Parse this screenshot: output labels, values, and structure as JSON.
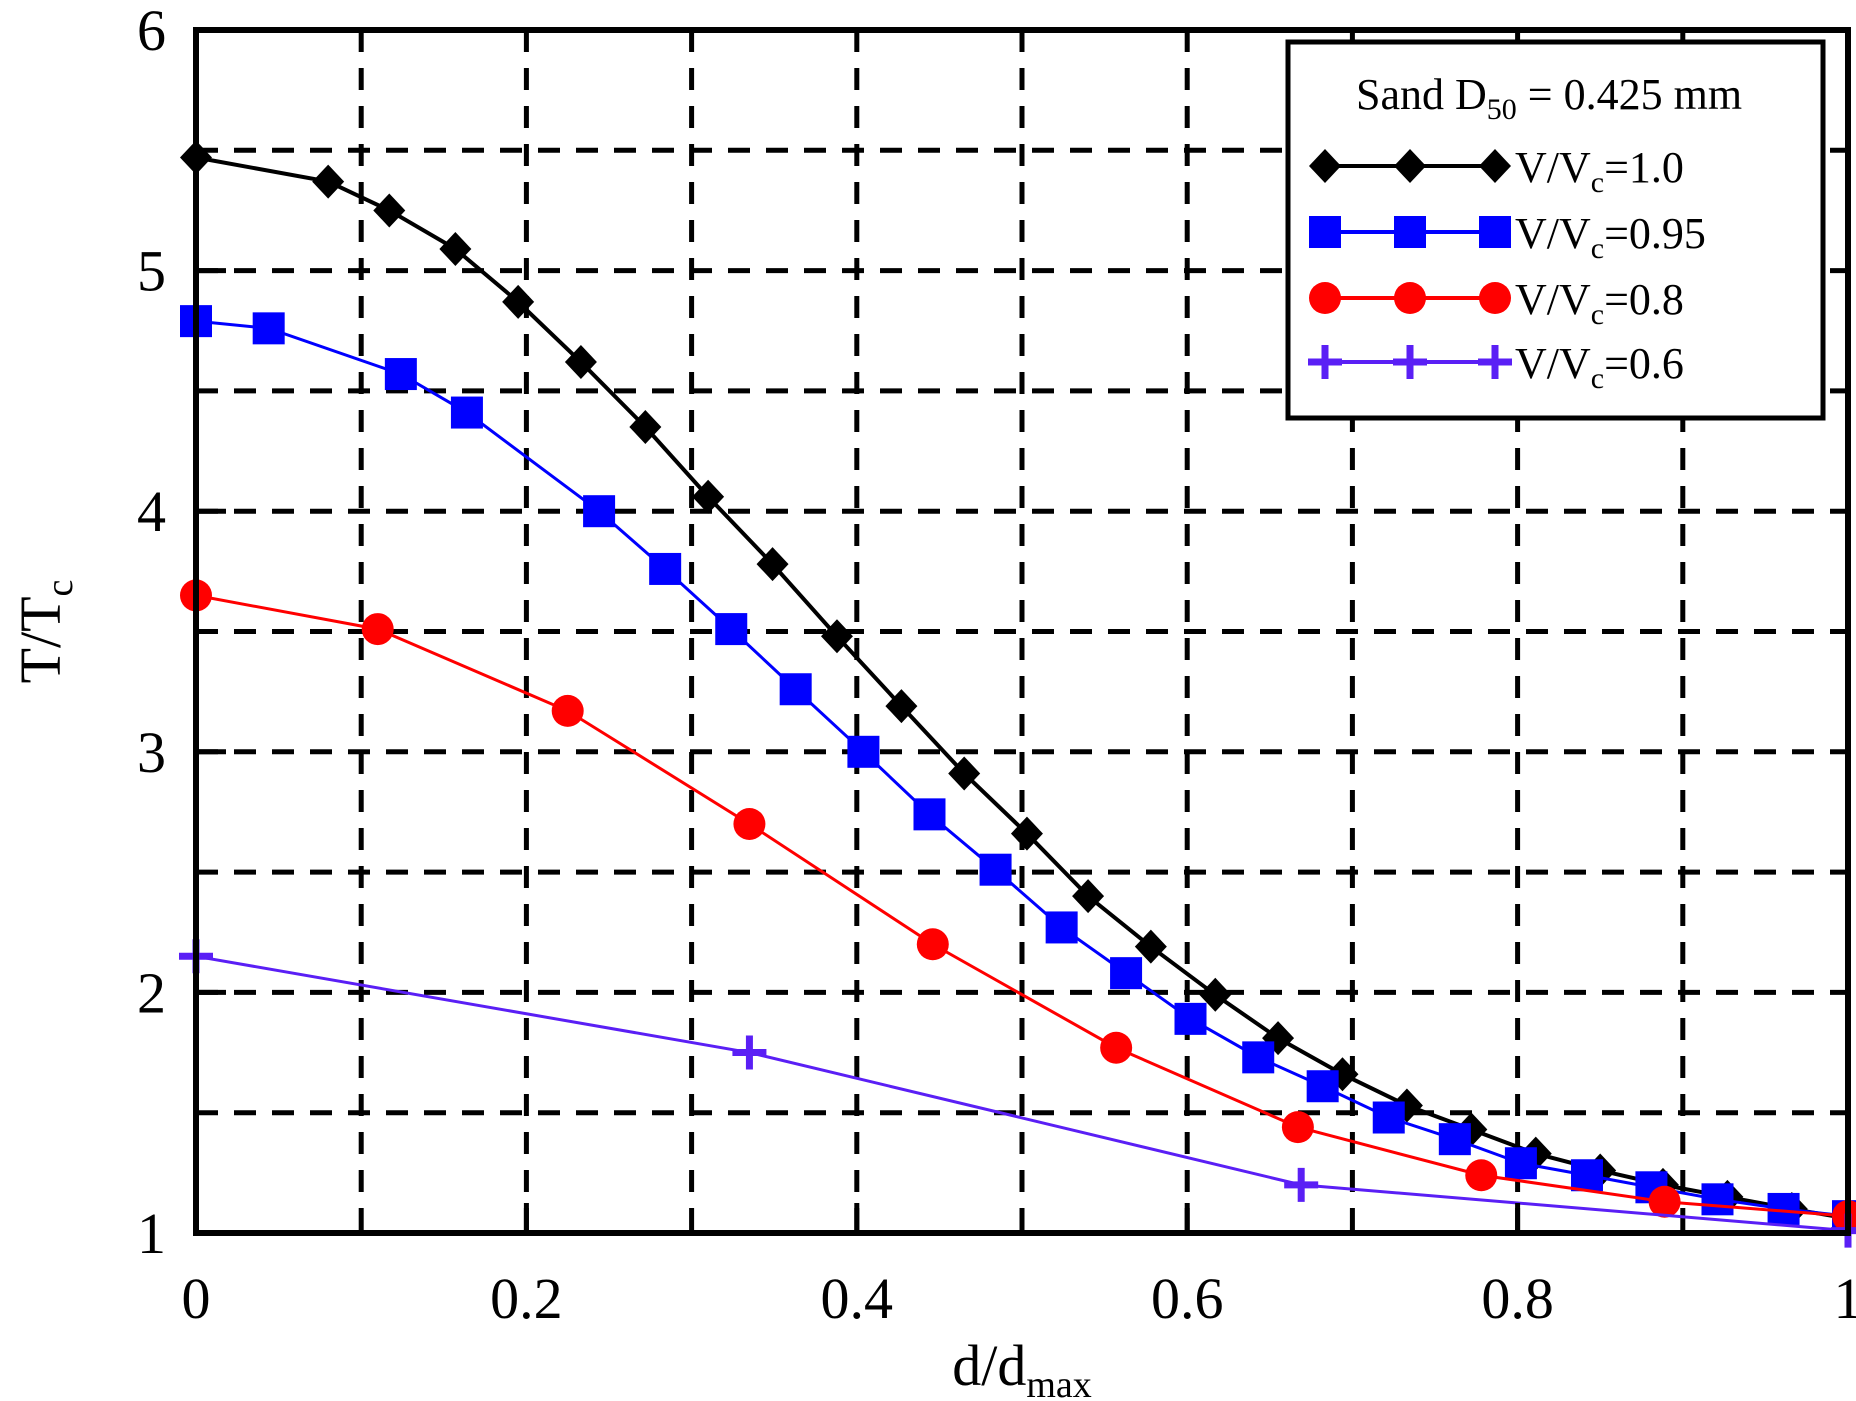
{
  "chart_data": {
    "type": "line",
    "title": "",
    "xlabel": "d/d",
    "xlabel_sub": "max",
    "ylabel": "T/T",
    "ylabel_sub": "c",
    "xlim": [
      0,
      1
    ],
    "ylim": [
      1,
      6
    ],
    "x_ticks": [
      0,
      0.2,
      0.4,
      0.6,
      0.8,
      1
    ],
    "x_tick_labels": [
      "0",
      "0.2",
      "0.4",
      "0.6",
      "0.8",
      "1"
    ],
    "y_ticks": [
      1,
      2,
      3,
      4,
      5,
      6
    ],
    "y_tick_labels": [
      "1",
      "2",
      "3",
      "4",
      "5",
      "6"
    ],
    "grid": true,
    "grid_style": "dashed",
    "x_grid": [
      0.1,
      0.2,
      0.3,
      0.4,
      0.5,
      0.6,
      0.7,
      0.8,
      0.9
    ],
    "y_grid": [
      1.5,
      2,
      2.5,
      3,
      3.5,
      4,
      4.5,
      5,
      5.5
    ],
    "legend": {
      "placement": "top-right",
      "title": "Sand D",
      "title_sub": "50",
      "title_rest": " = 0.425 mm"
    },
    "series": [
      {
        "name": "V/Vc=1.0",
        "label_main": "V/V",
        "label_sub": "c",
        "label_rest": "=1.0",
        "color": "#000000",
        "marker": "diamond",
        "x": [
          0,
          0.08,
          0.117,
          0.157,
          0.195,
          0.233,
          0.272,
          0.31,
          0.349,
          0.388,
          0.427,
          0.465,
          0.503,
          0.54,
          0.578,
          0.617,
          0.655,
          0.694,
          0.733,
          0.772,
          0.811,
          0.85,
          0.888,
          0.927,
          0.966,
          1.0
        ],
        "y": [
          5.47,
          5.37,
          5.25,
          5.09,
          4.87,
          4.62,
          4.35,
          4.06,
          3.78,
          3.48,
          3.19,
          2.91,
          2.66,
          2.4,
          2.19,
          1.99,
          1.81,
          1.66,
          1.53,
          1.43,
          1.33,
          1.26,
          1.2,
          1.15,
          1.1,
          1.06
        ]
      },
      {
        "name": "V/Vc=0.95",
        "label_main": "V/V",
        "label_sub": "c",
        "label_rest": "=0.95",
        "color": "#0000ff",
        "marker": "square",
        "x": [
          0,
          0.044,
          0.124,
          0.164,
          0.244,
          0.284,
          0.324,
          0.363,
          0.404,
          0.444,
          0.484,
          0.524,
          0.563,
          0.602,
          0.643,
          0.682,
          0.722,
          0.762,
          0.802,
          0.842,
          0.881,
          0.921,
          0.961,
          1.0
        ],
        "y": [
          4.79,
          4.76,
          4.57,
          4.41,
          4.0,
          3.76,
          3.51,
          3.26,
          3.0,
          2.74,
          2.51,
          2.27,
          2.08,
          1.89,
          1.73,
          1.61,
          1.48,
          1.39,
          1.29,
          1.24,
          1.19,
          1.14,
          1.1,
          1.07
        ]
      },
      {
        "name": "V/Vc=0.8",
        "label_main": "V/V",
        "label_sub": "c",
        "label_rest": "=0.8",
        "color": "#ff0000",
        "marker": "circle",
        "x": [
          0,
          0.11,
          0.225,
          0.335,
          0.446,
          0.557,
          0.667,
          0.778,
          0.889,
          1.0
        ],
        "y": [
          3.65,
          3.51,
          3.17,
          2.7,
          2.2,
          1.77,
          1.44,
          1.24,
          1.13,
          1.07
        ]
      },
      {
        "name": "V/Vc=0.6",
        "label_main": "V/V",
        "label_sub": "c",
        "label_rest": "=0.6",
        "color": "#5a1ff5",
        "marker": "plus",
        "x": [
          0,
          0.335,
          0.669,
          1.0
        ],
        "y": [
          2.15,
          1.75,
          1.2,
          1.01
        ]
      }
    ]
  }
}
